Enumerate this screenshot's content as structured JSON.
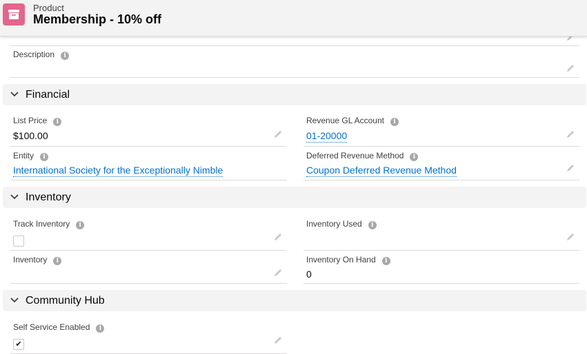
{
  "header": {
    "object_type": "Product",
    "title": "Membership - 10% off",
    "icon": "product-box-icon",
    "icon_color": "#e3668c"
  },
  "description": {
    "label": "Description",
    "value": ""
  },
  "sections": {
    "financial": {
      "title": "Financial",
      "list_price": {
        "label": "List Price",
        "value": "$100.00"
      },
      "revenue_gl": {
        "label": "Revenue GL Account",
        "value": "01-20000"
      },
      "entity": {
        "label": "Entity",
        "value": "International Society for the Exceptionally Nimble"
      },
      "deferred": {
        "label": "Deferred Revenue Method",
        "value": "Coupon Deferred Revenue Method"
      }
    },
    "inventory": {
      "title": "Inventory",
      "track": {
        "label": "Track Inventory",
        "checked": false
      },
      "used": {
        "label": "Inventory Used",
        "value": ""
      },
      "inventory": {
        "label": "Inventory",
        "value": ""
      },
      "on_hand": {
        "label": "Inventory On Hand",
        "value": "0"
      }
    },
    "community": {
      "title": "Community Hub",
      "self_service": {
        "label": "Self Service Enabled",
        "checked": true,
        "check": "✔"
      }
    }
  },
  "info_glyph": "i",
  "link_color": "#0070d2"
}
